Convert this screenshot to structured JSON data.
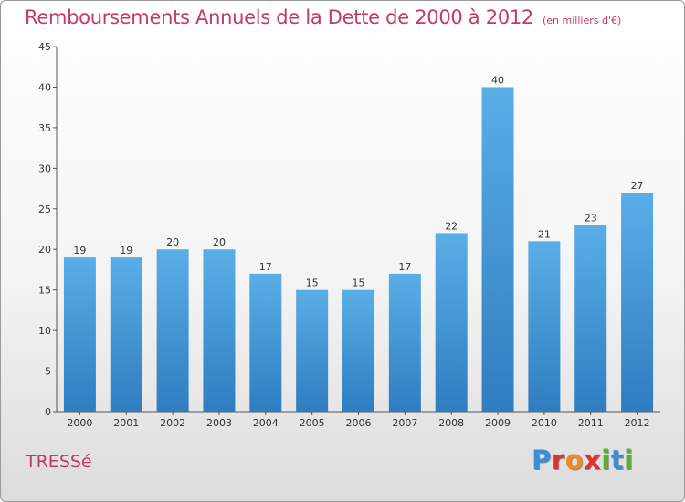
{
  "chart_data": {
    "type": "bar",
    "title": "Remboursements Annuels de la Dette de 2000 à 2012",
    "unit_note": "(en milliers d'€)",
    "categories": [
      "2000",
      "2001",
      "2002",
      "2003",
      "2004",
      "2005",
      "2006",
      "2007",
      "2008",
      "2009",
      "2010",
      "2011",
      "2012"
    ],
    "values": [
      19,
      19,
      20,
      20,
      17,
      15,
      15,
      17,
      22,
      40,
      21,
      23,
      27
    ],
    "ylim": [
      0,
      45
    ],
    "yticks": [
      0,
      5,
      10,
      15,
      20,
      25,
      30,
      35,
      40,
      45
    ],
    "grid": false,
    "legend": "none",
    "bar_color_top": "#5aaee6",
    "bar_color_bottom": "#2f7dc0"
  },
  "footer": {
    "commune": "TRESSé"
  },
  "brand": {
    "logo_letters": [
      "P",
      "r",
      "o",
      "x",
      "i",
      "t",
      "i"
    ],
    "logo_colors": [
      "#3a8fd8",
      "#e0302a",
      "#f08a1c",
      "#e0302a",
      "#58b030",
      "#3a8fd8",
      "#58b030"
    ]
  }
}
